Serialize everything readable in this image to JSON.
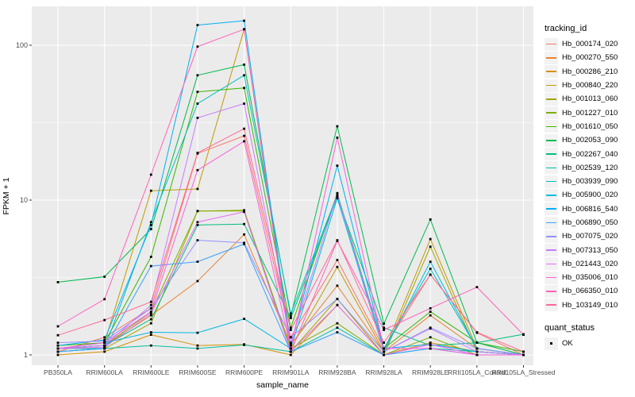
{
  "figure": {
    "background": "#FFFFFF",
    "panel_background": "#EBEBEB",
    "grid_color": "#FFFFFF",
    "tick_color": "#333333",
    "tick_label_color": "#4D4D4D",
    "point_color": "#000000",
    "legend_key_background": "#F2F2F2"
  },
  "legend": {
    "tracking_title": "tracking_id",
    "quant_title": "quant_status",
    "quant_items": [
      {
        "label": "OK",
        "marker": "black-square"
      }
    ]
  },
  "chart_data": {
    "type": "line",
    "title": "",
    "xlabel": "sample_name",
    "ylabel": "FPKM + 1",
    "y_scale": "log10",
    "y_ticks": [
      {
        "label": "1",
        "value": 1
      },
      {
        "label": "10",
        "value": 10
      },
      {
        "label": "100",
        "value": 100
      }
    ],
    "y_minor_ticks": [
      3.1623,
      31.623
    ],
    "ylim": [
      0.86,
      180
    ],
    "grid": true,
    "legend_position": "right",
    "point_marker": "small-black-square",
    "categories": [
      "PB350LA",
      "RRIM600LA",
      "RRIM600LE",
      "RRIM600SE",
      "RRIM600PE",
      "RRIM901LA",
      "RRIM928BA",
      "RRIM928LA",
      "RRIM928LE",
      "RRII105LA_Control",
      "RRII105LA_Stressed"
    ],
    "series": [
      {
        "name": "Hb_000174_020",
        "color": "#F8766D",
        "values": [
          1.05,
          1.3,
          2.0,
          20.0,
          26.0,
          1.3,
          4.1,
          1.1,
          3.3,
          1.39,
          1.0
        ]
      },
      {
        "name": "Hb_000270_550",
        "color": "#EA8331",
        "values": [
          1.1,
          1.15,
          1.8,
          3.0,
          6.0,
          1.17,
          2.8,
          1.05,
          1.8,
          1.1,
          1.0
        ]
      },
      {
        "name": "Hb_000286_210",
        "color": "#D89000",
        "values": [
          1.0,
          1.05,
          1.35,
          1.15,
          1.17,
          1.0,
          2.1,
          1.0,
          1.2,
          1.05,
          1.0
        ]
      },
      {
        "name": "Hb_000840_220",
        "color": "#C09B00",
        "values": [
          1.1,
          1.2,
          11.5,
          11.8,
          127.0,
          1.1,
          3.7,
          1.05,
          5.6,
          1.1,
          1.0
        ]
      },
      {
        "name": "Hb_001013_060",
        "color": "#A3A500",
        "values": [
          1.05,
          1.1,
          1.6,
          8.5,
          8.5,
          1.05,
          2.3,
          1.0,
          5.0,
          1.05,
          1.0
        ]
      },
      {
        "name": "Hb_001227_010",
        "color": "#7CAE00",
        "values": [
          1.1,
          1.15,
          1.9,
          8.5,
          8.6,
          1.1,
          1.6,
          1.0,
          1.3,
          1.0,
          1.0
        ]
      },
      {
        "name": "Hb_001610_050",
        "color": "#39B600",
        "values": [
          1.15,
          1.2,
          4.3,
          50.0,
          53.0,
          1.5,
          11.1,
          1.1,
          1.9,
          1.2,
          1.05
        ]
      },
      {
        "name": "Hb_002053_090",
        "color": "#00BB4E",
        "values": [
          2.95,
          3.2,
          6.5,
          64.0,
          75.0,
          1.78,
          30.0,
          1.59,
          7.5,
          1.2,
          1.0
        ]
      },
      {
        "name": "Hb_002267_040",
        "color": "#00BF7D",
        "values": [
          1.1,
          1.15,
          1.7,
          6.9,
          7.0,
          1.73,
          10.5,
          1.5,
          1.15,
          1.2,
          1.36
        ]
      },
      {
        "name": "Hb_002539_120",
        "color": "#00C1A3",
        "values": [
          1.1,
          1.1,
          1.15,
          1.1,
          1.16,
          1.05,
          1.5,
          1.0,
          1.1,
          1.05,
          1.0
        ]
      },
      {
        "name": "Hb_003939_090",
        "color": "#00BFC4",
        "values": [
          1.05,
          1.1,
          7.2,
          42.0,
          64.0,
          1.85,
          10.8,
          1.1,
          3.6,
          1.1,
          1.0
        ]
      },
      {
        "name": "Hb_005900_020",
        "color": "#00BAE0",
        "values": [
          1.1,
          1.2,
          1.4,
          1.39,
          1.71,
          1.1,
          10.3,
          1.05,
          4.0,
          1.1,
          1.0
        ]
      },
      {
        "name": "Hb_006816_540",
        "color": "#00B0F6",
        "values": [
          1.15,
          1.25,
          6.9,
          135.0,
          144.0,
          1.15,
          16.7,
          1.1,
          1.17,
          1.05,
          1.0
        ]
      },
      {
        "name": "Hb_006890_050",
        "color": "#35A2FF",
        "values": [
          1.05,
          1.1,
          3.75,
          4.0,
          5.2,
          1.05,
          1.4,
          1.0,
          1.1,
          1.0,
          1.0
        ]
      },
      {
        "name": "Hb_007075_020",
        "color": "#9590FF",
        "values": [
          1.2,
          1.23,
          2.0,
          5.5,
          5.3,
          1.3,
          2.3,
          1.05,
          1.5,
          1.1,
          1.0
        ]
      },
      {
        "name": "Hb_007313_050",
        "color": "#C77CFF",
        "values": [
          1.1,
          1.15,
          2.1,
          34.0,
          42.0,
          1.2,
          11.0,
          1.05,
          1.48,
          1.05,
          1.0
        ]
      },
      {
        "name": "Hb_021443_020",
        "color": "#E76BF3",
        "values": [
          1.1,
          1.12,
          1.85,
          7.2,
          8.4,
          1.05,
          2.1,
          1.0,
          1.17,
          1.0,
          1.0
        ]
      },
      {
        "name": "Hb_035006_010",
        "color": "#FA62DB",
        "values": [
          1.1,
          1.2,
          1.9,
          15.6,
          24.0,
          1.1,
          25.3,
          1.1,
          1.1,
          1.0,
          1.0
        ]
      },
      {
        "name": "Hb_066350_010",
        "color": "#FF62BC",
        "values": [
          1.53,
          2.29,
          14.6,
          98.0,
          127.0,
          1.05,
          5.45,
          1.45,
          2.0,
          2.74,
          1.35
        ]
      },
      {
        "name": "Hb_103149_010",
        "color": "#FF6A98",
        "values": [
          1.34,
          1.68,
          2.2,
          20.2,
          28.9,
          1.45,
          5.5,
          1.2,
          3.3,
          1.4,
          1.05
        ]
      }
    ]
  }
}
